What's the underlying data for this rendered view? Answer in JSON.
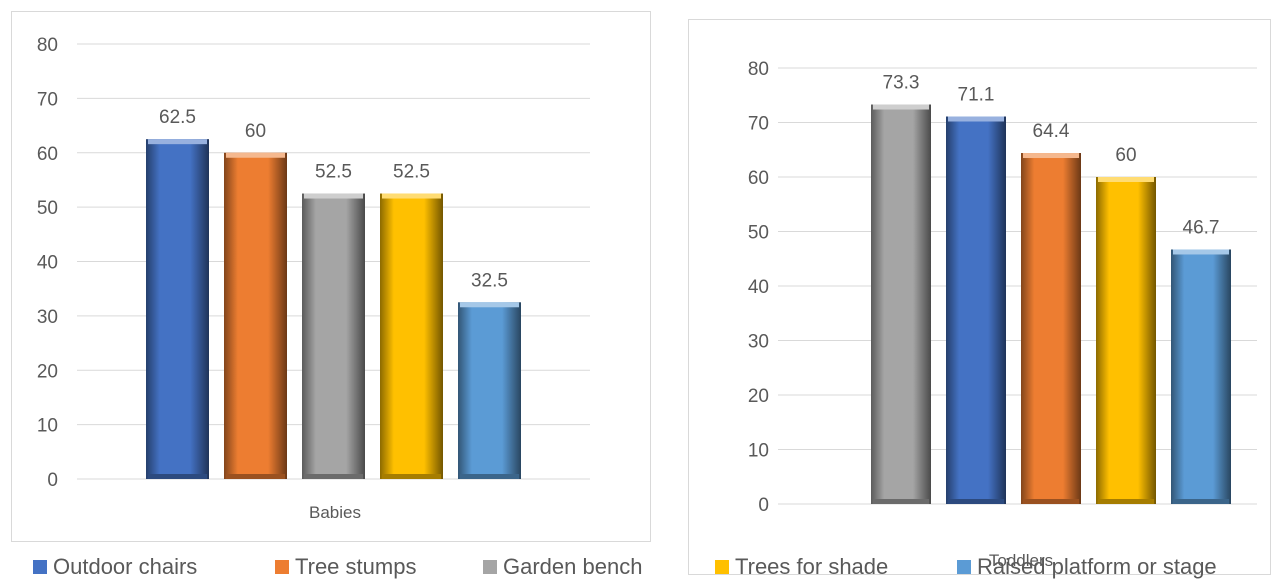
{
  "chart_data": [
    {
      "type": "bar",
      "categories": [
        "Babies"
      ],
      "series": [
        {
          "name": "Outdoor chairs",
          "values": [
            62.5
          ]
        },
        {
          "name": "Tree stumps",
          "values": [
            60
          ]
        },
        {
          "name": "Garden bench",
          "values": [
            52.5
          ]
        },
        {
          "name": "Trees for shade",
          "values": [
            52.5
          ]
        },
        {
          "name": "Raised platform or stage",
          "values": [
            32.5
          ]
        }
      ],
      "data_labels": [
        "62.5",
        "60",
        "52.5",
        "52.5",
        "32.5"
      ],
      "ylim": [
        0,
        80
      ],
      "yticks": [
        "0",
        "10",
        "20",
        "30",
        "40",
        "50",
        "60",
        "70",
        "80"
      ],
      "grid": true
    },
    {
      "type": "bar",
      "categories": [
        "Toddlers"
      ],
      "series": [
        {
          "name": "Garden bench",
          "values": [
            73.3
          ]
        },
        {
          "name": "Outdoor chairs",
          "values": [
            71.1
          ]
        },
        {
          "name": "Tree stumps",
          "values": [
            64.4
          ]
        },
        {
          "name": "Trees for shade",
          "values": [
            60
          ]
        },
        {
          "name": "Raised platform or stage",
          "values": [
            46.7
          ]
        }
      ],
      "data_labels": [
        "73.3",
        "71.1",
        "64.4",
        "60",
        "46.7"
      ],
      "ylim": [
        0,
        80
      ],
      "yticks": [
        "0",
        "10",
        "20",
        "30",
        "40",
        "50",
        "60",
        "70",
        "80"
      ],
      "grid": true
    }
  ],
  "legend": {
    "placement": "bottom",
    "items": [
      {
        "label": "Outdoor chairs",
        "color": "#4472c4"
      },
      {
        "label": "Tree stumps",
        "color": "#ed7d31"
      },
      {
        "label": "Garden bench",
        "color": "#a5a5a5"
      },
      {
        "label": "Trees for shade",
        "color": "#ffc000"
      },
      {
        "label": "Raised platform or stage",
        "color": "#5b9bd5"
      }
    ]
  },
  "colors": {
    "Outdoor chairs": "#4472c4",
    "Tree stumps": "#ed7d31",
    "Garden bench": "#a5a5a5",
    "Trees for shade": "#ffc000",
    "Raised platform or stage": "#5b9bd5",
    "text": "#595959",
    "gridline": "#d9d9d9"
  }
}
